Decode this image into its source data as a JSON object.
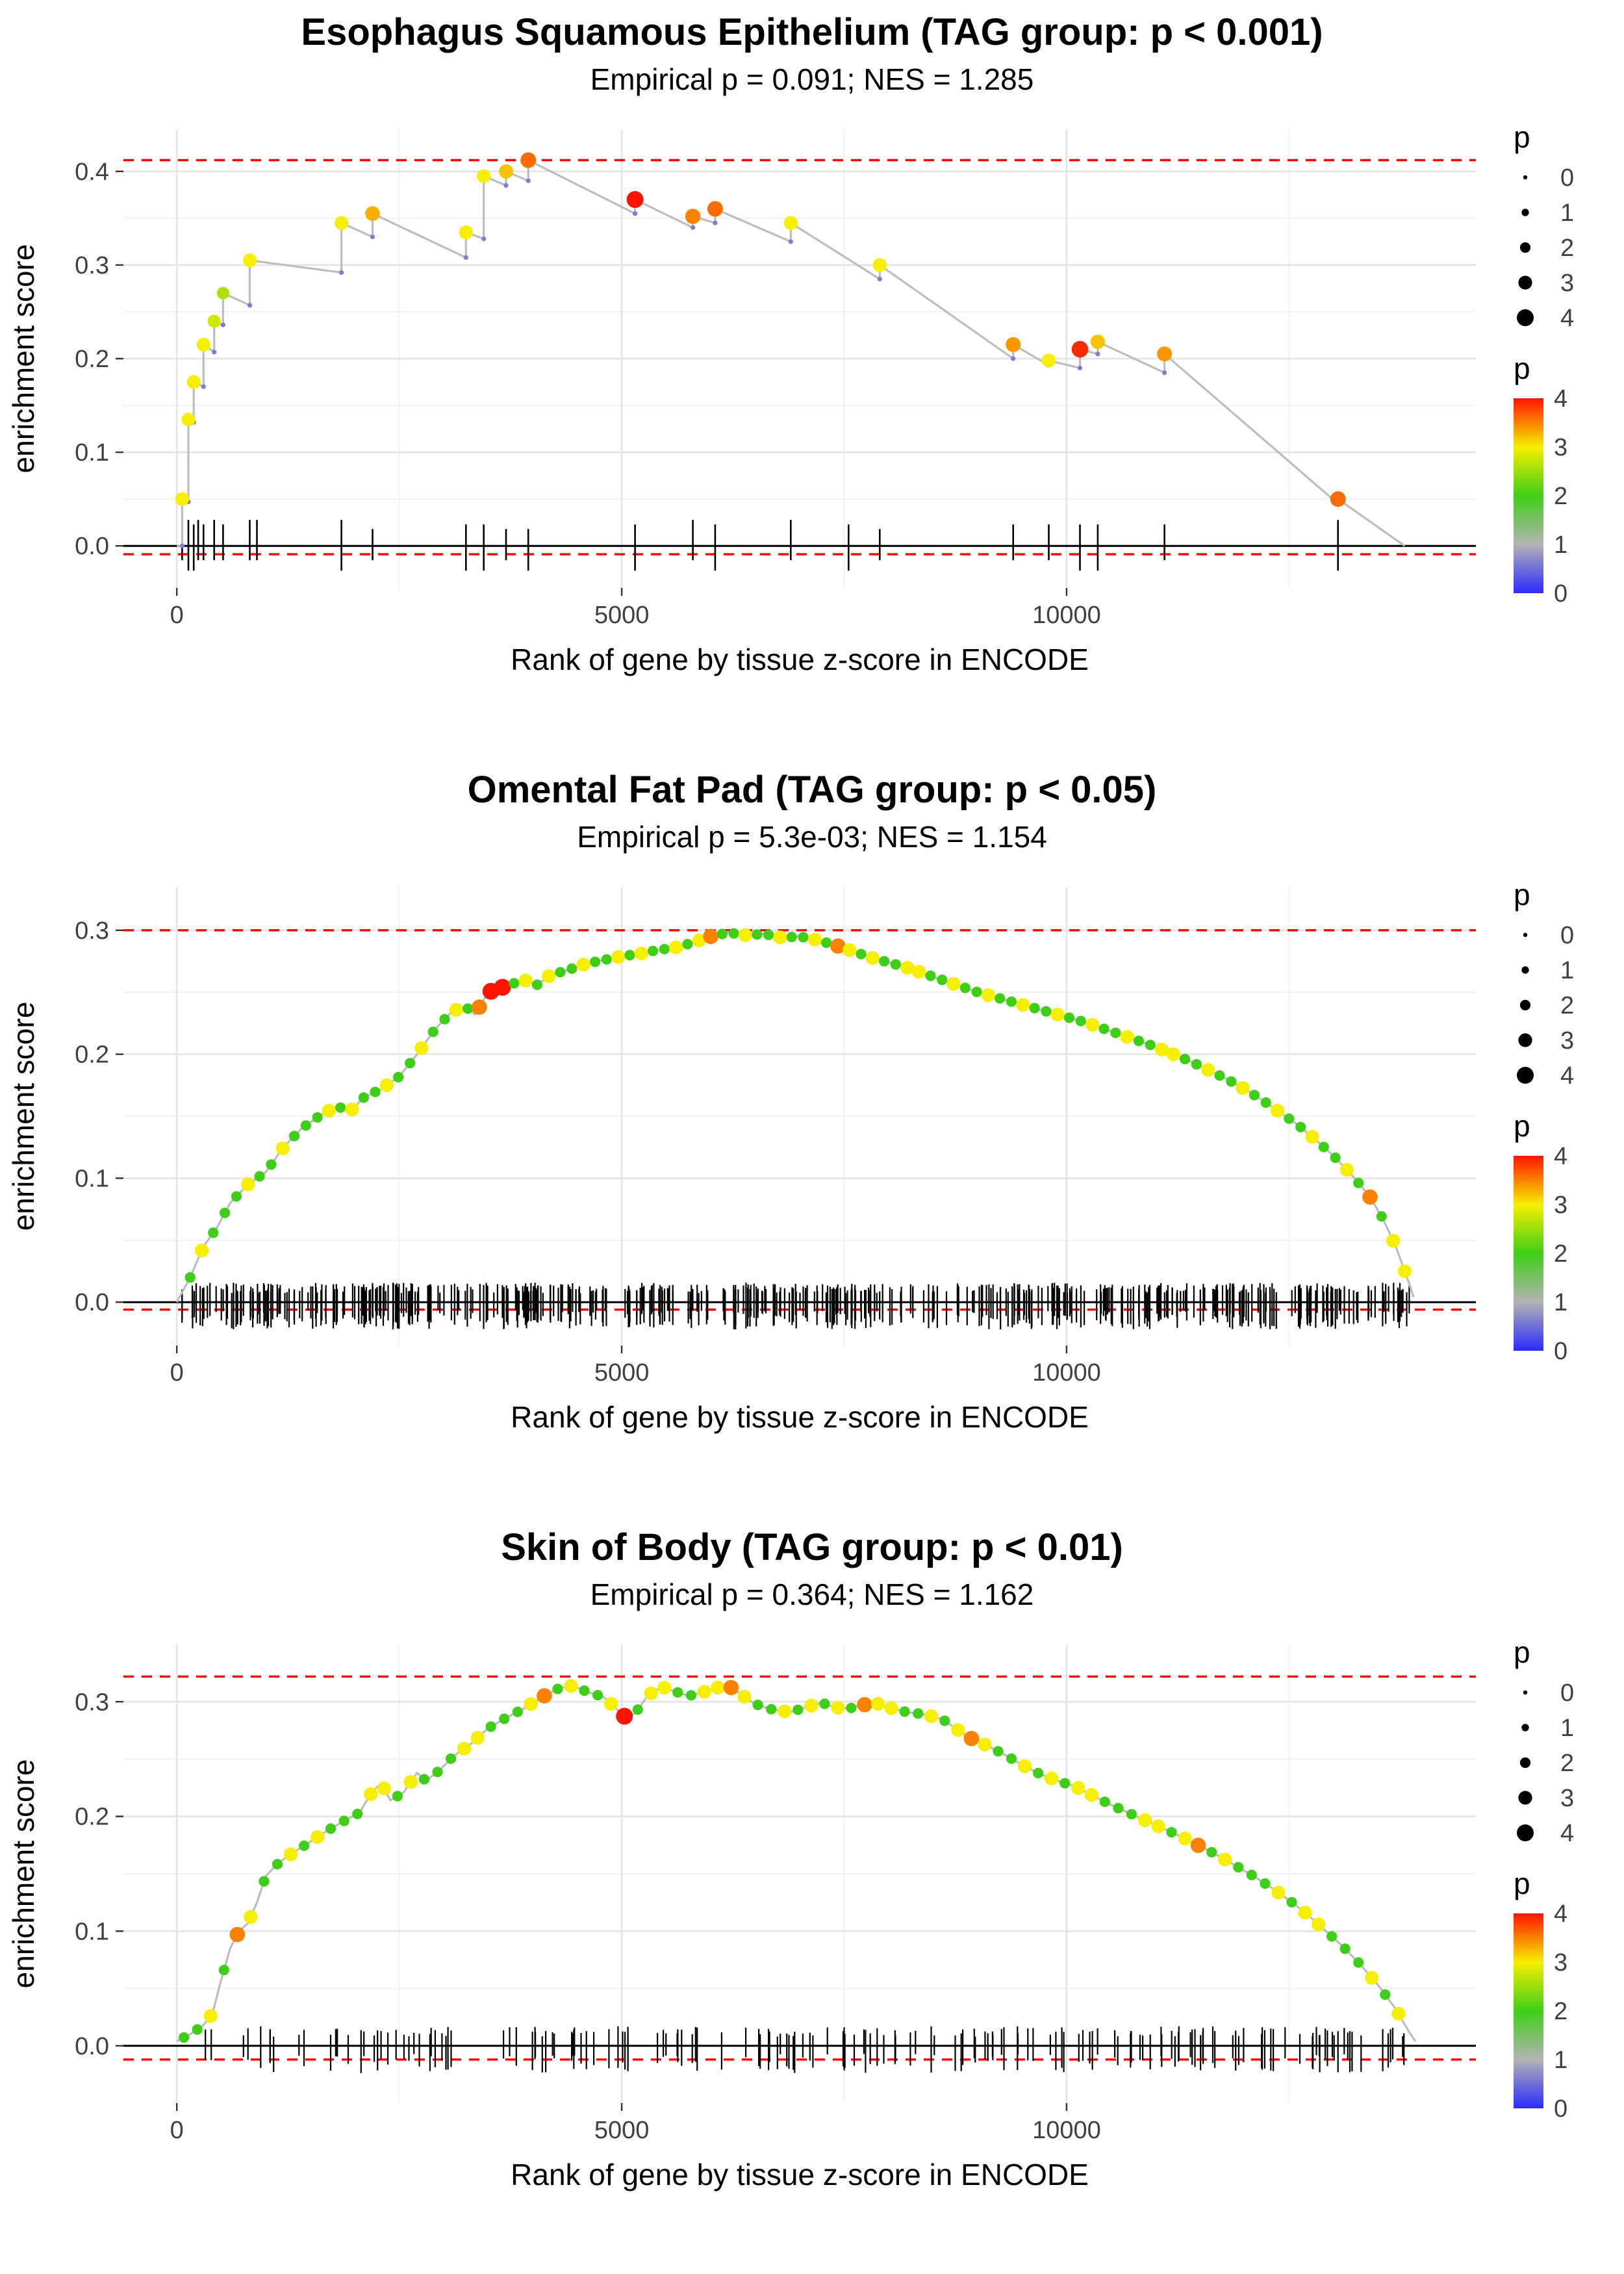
{
  "chart_data": [
    {
      "type": "line",
      "title": "Esophagus Squamous Epithelium (TAG group: p < 0.001)",
      "subtitle": "Empirical p = 0.091; NES = 1.285",
      "xlabel": "Rank of gene by tissue z-score in ENCODE",
      "ylabel": "enrichment score",
      "x_ticks": [
        0,
        5000,
        10000
      ],
      "x_range": [
        -600,
        14600
      ],
      "y_ticks": [
        0.0,
        0.1,
        0.2,
        0.3,
        0.4
      ],
      "y_range": [
        -0.045,
        0.445
      ],
      "es_max_dashed": 0.412,
      "zero_dashed": -0.009,
      "line_color": "#bdbdbd",
      "dashed_color": "#ff0000",
      "color_scale": {
        "0": "#2b2bff",
        "1": "#b3b3b3",
        "2": "#3fce17",
        "3": "#f6ef00",
        "4": "#ff1400"
      },
      "legend_size": {
        "title": "p",
        "values": [
          0,
          1,
          2,
          3,
          4
        ]
      },
      "legend_color": {
        "title": "p",
        "ticks": [
          4,
          3,
          2,
          1,
          0
        ]
      },
      "line": [
        [
          0,
          0
        ],
        [
          60,
          0
        ],
        [
          60,
          0.05
        ],
        [
          130,
          0.047
        ],
        [
          130,
          0.135
        ],
        [
          190,
          0.132
        ],
        [
          190,
          0.175
        ],
        [
          300,
          0.17
        ],
        [
          300,
          0.215
        ],
        [
          420,
          0.207
        ],
        [
          420,
          0.24
        ],
        [
          520,
          0.236
        ],
        [
          520,
          0.27
        ],
        [
          820,
          0.257
        ],
        [
          820,
          0.305
        ],
        [
          1850,
          0.292
        ],
        [
          1850,
          0.345
        ],
        [
          2200,
          0.33
        ],
        [
          2200,
          0.355
        ],
        [
          3250,
          0.308
        ],
        [
          3250,
          0.335
        ],
        [
          3450,
          0.328
        ],
        [
          3450,
          0.395
        ],
        [
          3700,
          0.385
        ],
        [
          3700,
          0.4
        ],
        [
          3950,
          0.39
        ],
        [
          3950,
          0.412
        ],
        [
          5150,
          0.355
        ],
        [
          5150,
          0.37
        ],
        [
          5800,
          0.34
        ],
        [
          5800,
          0.352
        ],
        [
          6050,
          0.345
        ],
        [
          6050,
          0.36
        ],
        [
          6900,
          0.325
        ],
        [
          6900,
          0.345
        ],
        [
          7900,
          0.285
        ],
        [
          7900,
          0.3
        ],
        [
          9400,
          0.2
        ],
        [
          9400,
          0.215
        ],
        [
          9800,
          0.193
        ],
        [
          9800,
          0.198
        ],
        [
          10150,
          0.19
        ],
        [
          10150,
          0.21
        ],
        [
          10350,
          0.205
        ],
        [
          10350,
          0.218
        ],
        [
          11100,
          0.185
        ],
        [
          11100,
          0.205
        ],
        [
          13050,
          0.045
        ],
        [
          13050,
          0.05
        ],
        [
          13800,
          0
        ]
      ],
      "points": [
        [
          60,
          0.05,
          3
        ],
        [
          130,
          0.135,
          3
        ],
        [
          190,
          0.175,
          3
        ],
        [
          300,
          0.215,
          3
        ],
        [
          420,
          0.24,
          2.8
        ],
        [
          520,
          0.27,
          2.6
        ],
        [
          820,
          0.305,
          3
        ],
        [
          1850,
          0.345,
          3
        ],
        [
          2200,
          0.355,
          3.3
        ],
        [
          3250,
          0.335,
          3
        ],
        [
          3450,
          0.395,
          3
        ],
        [
          3700,
          0.4,
          3.2
        ],
        [
          3950,
          0.412,
          3.6
        ],
        [
          5150,
          0.37,
          4
        ],
        [
          5800,
          0.352,
          3.5
        ],
        [
          6050,
          0.36,
          3.6
        ],
        [
          6900,
          0.345,
          3
        ],
        [
          7900,
          0.3,
          3
        ],
        [
          9400,
          0.215,
          3.4
        ],
        [
          9800,
          0.198,
          3
        ],
        [
          10150,
          0.21,
          3.9
        ],
        [
          10350,
          0.218,
          3.2
        ],
        [
          11100,
          0.205,
          3.4
        ],
        [
          13050,
          0.05,
          3.6
        ]
      ],
      "rug": {
        "mode": "list",
        "x": [
          60,
          130,
          190,
          240,
          300,
          420,
          520,
          820,
          900,
          1850,
          2200,
          3250,
          3450,
          3700,
          3950,
          5150,
          5800,
          6050,
          6900,
          7550,
          7900,
          9400,
          9800,
          10150,
          10350,
          11100,
          13050
        ]
      }
    },
    {
      "type": "line",
      "title": "Omental Fat Pad (TAG group: p < 0.05)",
      "subtitle": "Empirical p = 5.3e-03; NES = 1.154",
      "xlabel": "Rank of gene by tissue z-score in ENCODE",
      "ylabel": "enrichment score",
      "x_ticks": [
        0,
        5000,
        10000
      ],
      "x_range": [
        -600,
        14600
      ],
      "y_ticks": [
        0.0,
        0.1,
        0.2,
        0.3
      ],
      "y_range": [
        -0.035,
        0.335
      ],
      "es_max_dashed": 0.3,
      "zero_dashed": -0.006,
      "line_color": "#bdbdbd",
      "dashed_color": "#ff0000",
      "color_scale": {
        "0": "#2b2bff",
        "1": "#b3b3b3",
        "2": "#3fce17",
        "3": "#f6ef00",
        "4": "#ff1400"
      },
      "legend_size": {
        "title": "p",
        "values": [
          0,
          1,
          2,
          3,
          4
        ]
      },
      "legend_color": {
        "title": "p",
        "ticks": [
          4,
          3,
          2,
          1,
          0
        ]
      },
      "line": [
        [
          0,
          0
        ],
        [
          150,
          0.02
        ],
        [
          300,
          0.045
        ],
        [
          450,
          0.06
        ],
        [
          600,
          0.08
        ],
        [
          800,
          0.095
        ],
        [
          1000,
          0.105
        ],
        [
          1200,
          0.125
        ],
        [
          1400,
          0.14
        ],
        [
          1600,
          0.15
        ],
        [
          1800,
          0.158
        ],
        [
          1950,
          0.154
        ],
        [
          2100,
          0.165
        ],
        [
          2300,
          0.172
        ],
        [
          2500,
          0.182
        ],
        [
          2700,
          0.2
        ],
        [
          2900,
          0.22
        ],
        [
          3100,
          0.235
        ],
        [
          3250,
          0.238
        ],
        [
          3350,
          0.232
        ],
        [
          3500,
          0.25
        ],
        [
          3700,
          0.255
        ],
        [
          3900,
          0.26
        ],
        [
          4050,
          0.256
        ],
        [
          4200,
          0.264
        ],
        [
          4400,
          0.268
        ],
        [
          4600,
          0.273
        ],
        [
          4800,
          0.276
        ],
        [
          5000,
          0.279
        ],
        [
          5200,
          0.281
        ],
        [
          5400,
          0.284
        ],
        [
          5600,
          0.286
        ],
        [
          5800,
          0.29
        ],
        [
          6000,
          0.295
        ],
        [
          6200,
          0.298
        ],
        [
          6400,
          0.296
        ],
        [
          6600,
          0.297
        ],
        [
          6800,
          0.294
        ],
        [
          7000,
          0.295
        ],
        [
          7200,
          0.292
        ],
        [
          7400,
          0.288
        ],
        [
          7600,
          0.283
        ],
        [
          7800,
          0.278
        ],
        [
          8000,
          0.274
        ],
        [
          8200,
          0.27
        ],
        [
          8400,
          0.265
        ],
        [
          8600,
          0.26
        ],
        [
          8800,
          0.255
        ],
        [
          9000,
          0.25
        ],
        [
          9200,
          0.246
        ],
        [
          9400,
          0.242
        ],
        [
          9600,
          0.238
        ],
        [
          9800,
          0.234
        ],
        [
          10000,
          0.23
        ],
        [
          10200,
          0.226
        ],
        [
          10400,
          0.221
        ],
        [
          10600,
          0.216
        ],
        [
          10800,
          0.211
        ],
        [
          11000,
          0.206
        ],
        [
          11200,
          0.2
        ],
        [
          11400,
          0.194
        ],
        [
          11600,
          0.187
        ],
        [
          11800,
          0.18
        ],
        [
          12000,
          0.172
        ],
        [
          12200,
          0.163
        ],
        [
          12400,
          0.153
        ],
        [
          12600,
          0.143
        ],
        [
          12800,
          0.131
        ],
        [
          13000,
          0.118
        ],
        [
          13200,
          0.103
        ],
        [
          13400,
          0.086
        ],
        [
          13550,
          0.068
        ],
        [
          13700,
          0.045
        ],
        [
          13850,
          0.015
        ],
        [
          13900,
          0.004
        ]
      ],
      "points_seq": {
        "x0": 150,
        "dx": 130,
        "seq": "2322232232223232232232232a44232322322323223 23a2232232232a3232233223223223223223223223322322322322322 32a2332"
      },
      "rug": {
        "mode": "dense",
        "xmin": 40,
        "xmax": 13880,
        "count": 520,
        "seed": 3
      }
    },
    {
      "type": "line",
      "title": "Skin of Body (TAG group: p < 0.01)",
      "subtitle": "Empirical p = 0.364; NES = 1.162",
      "xlabel": "Rank of gene by tissue z-score in ENCODE",
      "ylabel": "enrichment score",
      "x_ticks": [
        0,
        5000,
        10000
      ],
      "x_range": [
        -600,
        14600
      ],
      "y_ticks": [
        0.0,
        0.1,
        0.2,
        0.3
      ],
      "y_range": [
        -0.05,
        0.35
      ],
      "es_max_dashed": 0.322,
      "zero_dashed": -0.012,
      "line_color": "#bdbdbd",
      "dashed_color": "#ff0000",
      "color_scale": {
        "0": "#2b2bff",
        "1": "#b3b3b3",
        "2": "#3fce17",
        "3": "#f6ef00",
        "4": "#ff1400"
      },
      "legend_size": {
        "title": "p",
        "values": [
          0,
          1,
          2,
          3,
          4
        ]
      },
      "legend_color": {
        "title": "p",
        "ticks": [
          4,
          3,
          2,
          1,
          0
        ]
      },
      "line": [
        [
          0,
          0.004
        ],
        [
          150,
          0.01
        ],
        [
          300,
          0.018
        ],
        [
          400,
          0.028
        ],
        [
          500,
          0.058
        ],
        [
          600,
          0.085
        ],
        [
          700,
          0.1
        ],
        [
          800,
          0.107
        ],
        [
          900,
          0.125
        ],
        [
          1000,
          0.148
        ],
        [
          1150,
          0.16
        ],
        [
          1300,
          0.168
        ],
        [
          1500,
          0.178
        ],
        [
          1700,
          0.188
        ],
        [
          1900,
          0.197
        ],
        [
          2050,
          0.203
        ],
        [
          2200,
          0.222
        ],
        [
          2300,
          0.229
        ],
        [
          2400,
          0.214
        ],
        [
          2550,
          0.221
        ],
        [
          2700,
          0.238
        ],
        [
          2800,
          0.231
        ],
        [
          2950,
          0.24
        ],
        [
          3100,
          0.252
        ],
        [
          3300,
          0.263
        ],
        [
          3500,
          0.277
        ],
        [
          3700,
          0.286
        ],
        [
          3900,
          0.294
        ],
        [
          4100,
          0.304
        ],
        [
          4300,
          0.312
        ],
        [
          4450,
          0.314
        ],
        [
          4600,
          0.309
        ],
        [
          4800,
          0.304
        ],
        [
          4950,
          0.293
        ],
        [
          5050,
          0.286
        ],
        [
          5150,
          0.29
        ],
        [
          5300,
          0.306
        ],
        [
          5450,
          0.313
        ],
        [
          5600,
          0.309
        ],
        [
          5750,
          0.305
        ],
        [
          5900,
          0.308
        ],
        [
          6050,
          0.312
        ],
        [
          6200,
          0.314
        ],
        [
          6350,
          0.306
        ],
        [
          6500,
          0.298
        ],
        [
          6700,
          0.293
        ],
        [
          6900,
          0.291
        ],
        [
          7100,
          0.296
        ],
        [
          7250,
          0.299
        ],
        [
          7400,
          0.295
        ],
        [
          7550,
          0.294
        ],
        [
          7700,
          0.297
        ],
        [
          7850,
          0.299
        ],
        [
          8000,
          0.295
        ],
        [
          8200,
          0.291
        ],
        [
          8400,
          0.289
        ],
        [
          8600,
          0.285
        ],
        [
          8750,
          0.277
        ],
        [
          8900,
          0.269
        ],
        [
          9100,
          0.262
        ],
        [
          9300,
          0.254
        ],
        [
          9500,
          0.245
        ],
        [
          9700,
          0.237
        ],
        [
          9900,
          0.231
        ],
        [
          10100,
          0.226
        ],
        [
          10300,
          0.218
        ],
        [
          10500,
          0.21
        ],
        [
          10700,
          0.203
        ],
        [
          10900,
          0.196
        ],
        [
          11100,
          0.189
        ],
        [
          11300,
          0.182
        ],
        [
          11500,
          0.174
        ],
        [
          11700,
          0.166
        ],
        [
          11900,
          0.157
        ],
        [
          12100,
          0.148
        ],
        [
          12300,
          0.138
        ],
        [
          12500,
          0.127
        ],
        [
          12700,
          0.115
        ],
        [
          12900,
          0.101
        ],
        [
          13100,
          0.087
        ],
        [
          13300,
          0.071
        ],
        [
          13500,
          0.053
        ],
        [
          13700,
          0.032
        ],
        [
          13850,
          0.012
        ],
        [
          13920,
          0.004
        ]
      ],
      "points_seq": {
        "x0": 80,
        "dx": 150,
        "seq": "2232a322323222332322233222 3a232234233223 3a322323232a3322323a3223232332223323a2322232332223 23"
      },
      "rug": {
        "mode": "dense",
        "xmin": 120,
        "xmax": 13900,
        "count": 175,
        "seed": 9
      }
    }
  ]
}
